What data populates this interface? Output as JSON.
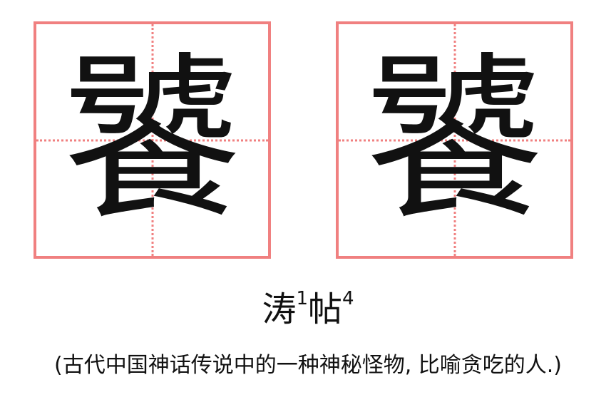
{
  "characters": {
    "traditional": "饕",
    "simplified": "饕"
  },
  "pronunciation": {
    "syllable_1": "涛",
    "tone_1": "1",
    "syllable_2": "帖",
    "tone_2": "4"
  },
  "meaning": "(古代中国神话传说中的一种神秘怪物, 比喻贪吃的人.)",
  "colors": {
    "grid_border": "#f08080",
    "glyph": "#111111",
    "background": "#ffffff"
  }
}
